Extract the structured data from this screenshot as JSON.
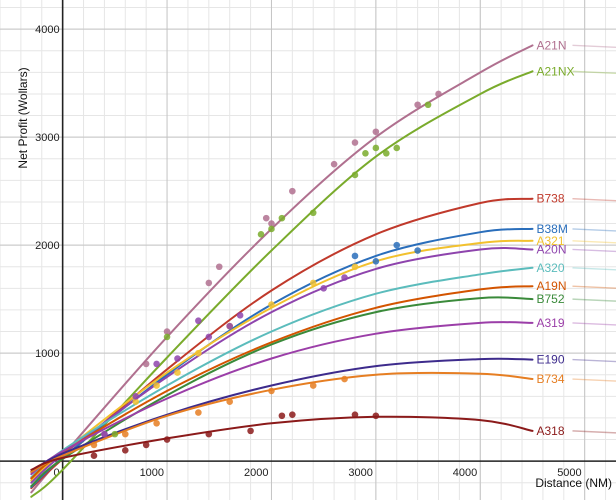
{
  "chart_data": {
    "type": "scatter",
    "title": "",
    "xlabel": "Distance (NM)",
    "ylabel": "Net Profit (Wollars)",
    "xlim": [
      -600,
      5300
    ],
    "ylim": [
      -360,
      4270
    ],
    "grid": true,
    "x_ticks": [
      {
        "v": 0,
        "label": "0"
      },
      {
        "v": 1000,
        "label": "1000"
      },
      {
        "v": 2000,
        "label": "2000"
      },
      {
        "v": 3000,
        "label": "3000"
      },
      {
        "v": 4000,
        "label": "4000"
      },
      {
        "v": 5000,
        "label": "5000"
      }
    ],
    "y_ticks": [
      {
        "v": 1000,
        "label": "1000"
      },
      {
        "v": 2000,
        "label": "2000"
      },
      {
        "v": 3000,
        "label": "3000"
      },
      {
        "v": 4000,
        "label": "4000"
      }
    ],
    "series": [
      {
        "name": "A21N",
        "color": "#b0708f",
        "curve": [
          [
            -300,
            -290
          ],
          [
            0,
            50
          ],
          [
            1000,
            1150
          ],
          [
            2000,
            2150
          ],
          [
            3000,
            3000
          ],
          [
            4000,
            3600
          ],
          [
            4500,
            3850
          ]
        ],
        "points": [
          [
            400,
            250
          ],
          [
            800,
            900
          ],
          [
            1000,
            1200
          ],
          [
            1400,
            1650
          ],
          [
            1500,
            1800
          ],
          [
            1950,
            2250
          ],
          [
            2000,
            2200
          ],
          [
            2200,
            2500
          ],
          [
            2600,
            2750
          ],
          [
            2800,
            2950
          ],
          [
            3000,
            3050
          ],
          [
            3400,
            3300
          ],
          [
            3600,
            3400
          ]
        ]
      },
      {
        "name": "A21NX",
        "color": "#7aab2c",
        "curve": [
          [
            -300,
            -330
          ],
          [
            0,
            -80
          ],
          [
            1000,
            960
          ],
          [
            2000,
            1950
          ],
          [
            3000,
            2820
          ],
          [
            4000,
            3400
          ],
          [
            4500,
            3610
          ]
        ],
        "points": [
          [
            500,
            250
          ],
          [
            1000,
            1150
          ],
          [
            1900,
            2100
          ],
          [
            2000,
            2150
          ],
          [
            2100,
            2250
          ],
          [
            2400,
            2300
          ],
          [
            2800,
            2650
          ],
          [
            2900,
            2850
          ],
          [
            3000,
            2900
          ],
          [
            3100,
            2850
          ],
          [
            3200,
            2900
          ],
          [
            3500,
            3300
          ]
        ]
      },
      {
        "name": "B738",
        "color": "#c0392b",
        "curve": [
          [
            -300,
            -250
          ],
          [
            0,
            20
          ],
          [
            1000,
            850
          ],
          [
            2000,
            1580
          ],
          [
            3000,
            2100
          ],
          [
            4000,
            2390
          ],
          [
            4500,
            2430
          ]
        ],
        "points": []
      },
      {
        "name": "B38M",
        "color": "#2a6ebb",
        "curve": [
          [
            -300,
            -240
          ],
          [
            0,
            30
          ],
          [
            1000,
            800
          ],
          [
            2000,
            1450
          ],
          [
            3000,
            1900
          ],
          [
            4000,
            2120
          ],
          [
            4500,
            2150
          ]
        ],
        "points": [
          [
            2800,
            1900
          ],
          [
            3000,
            1850
          ],
          [
            3200,
            2000
          ],
          [
            3400,
            1950
          ]
        ]
      },
      {
        "name": "A321",
        "color": "#f2c12e",
        "curve": [
          [
            -300,
            -180
          ],
          [
            0,
            80
          ],
          [
            1000,
            820
          ],
          [
            2000,
            1420
          ],
          [
            3000,
            1850
          ],
          [
            4000,
            2020
          ],
          [
            4500,
            2040
          ]
        ],
        "points": [
          [
            700,
            550
          ],
          [
            900,
            700
          ],
          [
            1100,
            820
          ],
          [
            1300,
            1000
          ],
          [
            1600,
            1250
          ],
          [
            2000,
            1450
          ],
          [
            2400,
            1650
          ],
          [
            2800,
            1800
          ]
        ]
      },
      {
        "name": "A20N",
        "color": "#8e44ad",
        "curve": [
          [
            -300,
            -200
          ],
          [
            0,
            60
          ],
          [
            1000,
            780
          ],
          [
            2000,
            1380
          ],
          [
            3000,
            1780
          ],
          [
            4000,
            1960
          ],
          [
            4500,
            1960
          ]
        ],
        "points": [
          [
            400,
            250
          ],
          [
            700,
            600
          ],
          [
            900,
            900
          ],
          [
            1100,
            950
          ],
          [
            1300,
            1300
          ],
          [
            1400,
            1150
          ],
          [
            1600,
            1250
          ],
          [
            1700,
            1350
          ],
          [
            2500,
            1600
          ],
          [
            2700,
            1700
          ]
        ]
      },
      {
        "name": "A320",
        "color": "#5bbcbc",
        "curve": [
          [
            -300,
            -150
          ],
          [
            0,
            100
          ],
          [
            1000,
            700
          ],
          [
            2000,
            1200
          ],
          [
            3000,
            1550
          ],
          [
            4000,
            1730
          ],
          [
            4500,
            1790
          ]
        ],
        "points": []
      },
      {
        "name": "A19N",
        "color": "#d35400",
        "curve": [
          [
            -300,
            -160
          ],
          [
            0,
            80
          ],
          [
            1000,
            650
          ],
          [
            2000,
            1100
          ],
          [
            3000,
            1420
          ],
          [
            4000,
            1590
          ],
          [
            4500,
            1620
          ]
        ],
        "points": []
      },
      {
        "name": "B752",
        "color": "#3a8a3a",
        "curve": [
          [
            -300,
            -230
          ],
          [
            0,
            20
          ],
          [
            1000,
            610
          ],
          [
            2000,
            1080
          ],
          [
            3000,
            1380
          ],
          [
            4000,
            1510
          ],
          [
            4500,
            1500
          ]
        ],
        "points": []
      },
      {
        "name": "A319",
        "color": "#9b3ea8",
        "curve": [
          [
            -300,
            -120
          ],
          [
            0,
            90
          ],
          [
            1000,
            580
          ],
          [
            2000,
            950
          ],
          [
            3000,
            1180
          ],
          [
            4000,
            1280
          ],
          [
            4500,
            1280
          ]
        ],
        "points": []
      },
      {
        "name": "E190",
        "color": "#3d2b8c",
        "curve": [
          [
            -300,
            -100
          ],
          [
            0,
            70
          ],
          [
            1000,
            430
          ],
          [
            2000,
            700
          ],
          [
            3000,
            880
          ],
          [
            4000,
            945
          ],
          [
            4500,
            940
          ]
        ],
        "points": []
      },
      {
        "name": "B734",
        "color": "#e67e22",
        "curve": [
          [
            -300,
            -100
          ],
          [
            0,
            50
          ],
          [
            1000,
            420
          ],
          [
            2000,
            660
          ],
          [
            3000,
            800
          ],
          [
            4000,
            810
          ],
          [
            4500,
            760
          ]
        ],
        "points": [
          [
            300,
            150
          ],
          [
            600,
            250
          ],
          [
            900,
            350
          ],
          [
            1300,
            450
          ],
          [
            1600,
            550
          ],
          [
            2000,
            650
          ],
          [
            2400,
            700
          ],
          [
            2700,
            760
          ]
        ]
      },
      {
        "name": "A318",
        "color": "#8b1a1a",
        "curve": [
          [
            -300,
            -80
          ],
          [
            0,
            30
          ],
          [
            1000,
            210
          ],
          [
            2000,
            350
          ],
          [
            3000,
            410
          ],
          [
            4000,
            380
          ],
          [
            4500,
            280
          ]
        ],
        "points": [
          [
            300,
            50
          ],
          [
            600,
            100
          ],
          [
            800,
            150
          ],
          [
            1000,
            200
          ],
          [
            1400,
            250
          ],
          [
            1800,
            280
          ],
          [
            2100,
            420
          ],
          [
            2200,
            430
          ],
          [
            2800,
            430
          ],
          [
            3000,
            420
          ]
        ]
      }
    ]
  }
}
